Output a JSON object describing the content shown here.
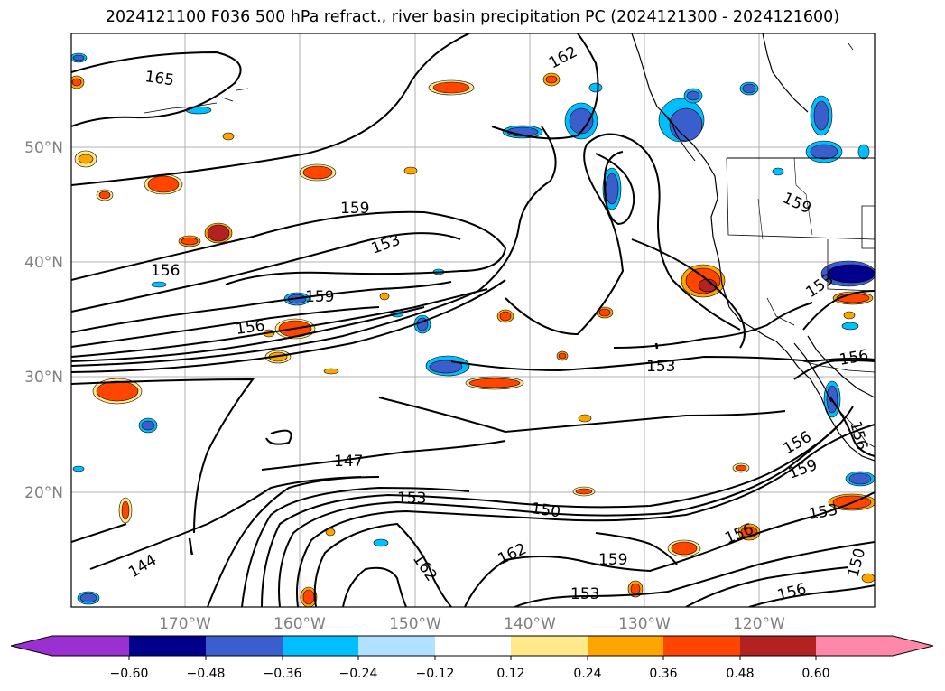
{
  "title": "2024121100 F036 500 hPa refract., river basin precipitation PC (2024121300 - 2024121600)",
  "map": {
    "lat_labels": [
      "50°N",
      "40°N",
      "30°N",
      "20°N"
    ],
    "lon_labels": [
      "170°W",
      "160°W",
      "150°W",
      "140°W",
      "130°W",
      "120°W"
    ],
    "contour_labels": [
      "165",
      "162",
      "159",
      "156",
      "153",
      "159",
      "156",
      "153",
      "153",
      "147",
      "150",
      "153",
      "156",
      "159",
      "156",
      "162",
      "162",
      "159",
      "153",
      "156",
      "150",
      "153",
      "144",
      "159",
      "156",
      "156"
    ],
    "contour_color": "#000000",
    "coastline_color": "#000000",
    "gridline_color": "#b0b0b0",
    "label_color": "#808080"
  },
  "colorbar": {
    "ticks": [
      "−0.60",
      "−0.48",
      "−0.36",
      "−0.24",
      "−0.12",
      "0.12",
      "0.24",
      "0.36",
      "0.48",
      "0.60"
    ],
    "colors": [
      "#9b30d0",
      "#00008b",
      "#3a5fcd",
      "#00bfff",
      "#b0e2ff",
      "#ffffff",
      "#ffe98a",
      "#ffa500",
      "#ff4500",
      "#b22222",
      "#ff88aa"
    ]
  }
}
